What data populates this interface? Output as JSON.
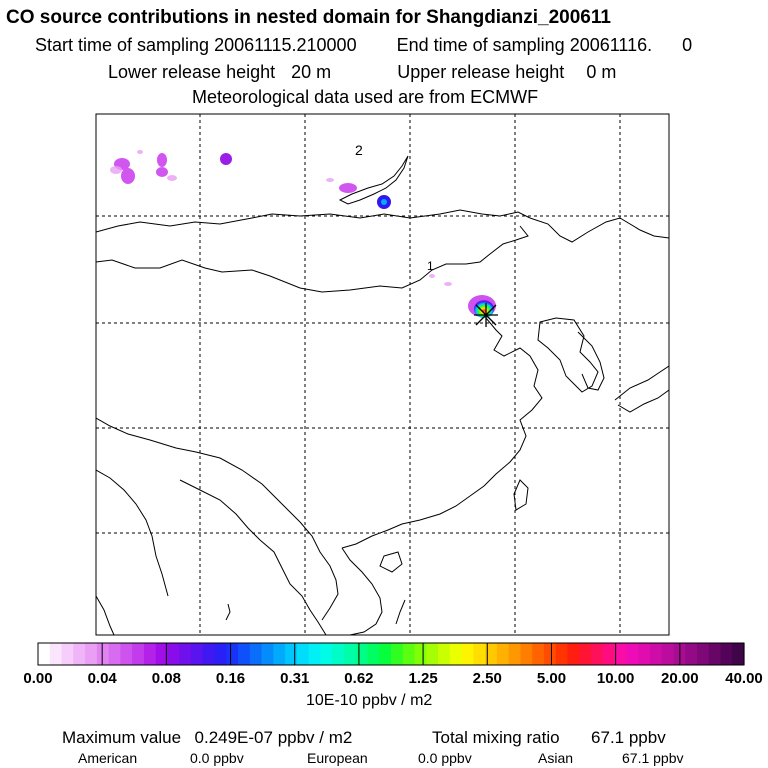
{
  "title": "CO  source contributions in nested domain for Shangdianzi_200611",
  "sampling": {
    "start_label": "Start time of sampling",
    "start_value": "20061115.210000",
    "end_label": "End time of sampling",
    "end_value": "20061116.",
    "end_suffix": "0"
  },
  "release": {
    "lower_label": "Lower release height",
    "lower_value": "20 m",
    "upper_label": "Upper release height",
    "upper_value": "0 m"
  },
  "met_source": "Meteorological data used are from ECMWF",
  "map": {
    "labels": [
      "2",
      "1"
    ],
    "receptor_icon": "receptor-star-icon"
  },
  "colorbar": {
    "unit": "10E-10 ppbv / m2",
    "ticks": [
      "0.00",
      "0.04",
      "0.08",
      "0.16",
      "0.31",
      "0.62",
      "1.25",
      "2.50",
      "5.00",
      "10.00",
      "20.00",
      "40.00"
    ],
    "colors": [
      "#ffffff",
      "#fbe5fd",
      "#f6cdfb",
      "#f0b4f8",
      "#ea9ff5",
      "#e283f2",
      "#d86cf0",
      "#ce52ee",
      "#c23cec",
      "#b422ea",
      "#a00ee8",
      "#8a0cea",
      "#7010ec",
      "#5a14f0",
      "#4018f2",
      "#2a20f6",
      "#1834f8",
      "#1050fa",
      "#0a6efb",
      "#058cfc",
      "#02aafd",
      "#00c6fd",
      "#00dcfc",
      "#00f0f6",
      "#00fce6",
      "#00fdc8",
      "#00fea8",
      "#00fe86",
      "#00fe62",
      "#06fe3c",
      "#30fe20",
      "#5afe10",
      "#80fe08",
      "#a6fe04",
      "#caff02",
      "#eaff00",
      "#fff400",
      "#ffde00",
      "#ffc800",
      "#ffb000",
      "#ff9800",
      "#ff7e00",
      "#ff6400",
      "#ff4c00",
      "#ff3400",
      "#ff1e10",
      "#ff1434",
      "#ff105a",
      "#ff0c80",
      "#fa0ca6",
      "#ee0cb6",
      "#e00cb0",
      "#ce0ca8",
      "#bc0c9e",
      "#a80c92",
      "#940a86",
      "#7e0878",
      "#680668",
      "#540458",
      "#400448"
    ]
  },
  "summary": {
    "max_label": "Maximum value",
    "max_value": "0.249E-07 ppbv / m2",
    "total_label": "Total mixing ratio",
    "total_value": "67.1 ppbv",
    "regions": [
      {
        "name": "American",
        "value": "0.0 ppbv"
      },
      {
        "name": "European",
        "value": "0.0 ppbv"
      },
      {
        "name": "Asian",
        "value": "67.1 ppbv"
      }
    ]
  }
}
